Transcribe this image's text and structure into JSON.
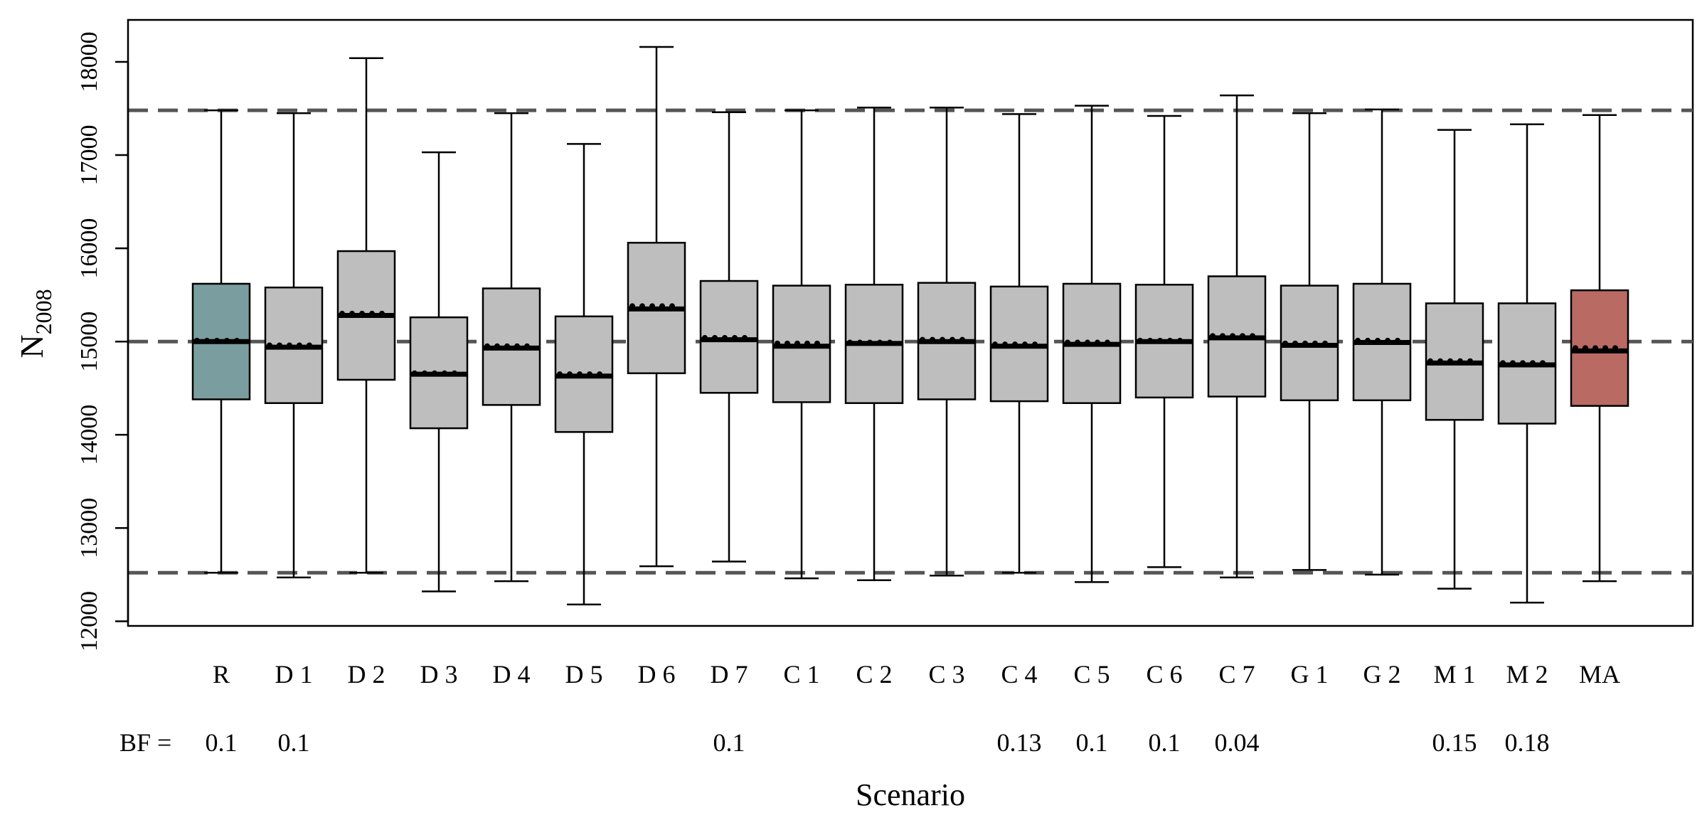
{
  "chart_data": {
    "type": "boxplot",
    "title": "",
    "xlabel": "Scenario",
    "ylabel_main": "N",
    "ylabel_sub": "2008",
    "ylim": [
      11950,
      18450
    ],
    "yticks": [
      12000,
      13000,
      14000,
      15000,
      16000,
      17000,
      18000
    ],
    "grid": false,
    "reference_lines": [
      {
        "y": 17480,
        "style": "dashed"
      },
      {
        "y": 15000,
        "style": "dashed"
      },
      {
        "y": 12520,
        "style": "dashed"
      }
    ],
    "bf_label": "BF =",
    "colors": {
      "default_box": "#bebebe",
      "R": "#7a9e9f",
      "MA": "#b96a62",
      "reference_line": "#555555",
      "stroke": "#000000"
    },
    "boxes": [
      {
        "label": "R",
        "whisker_low": 12520,
        "q1": 14380,
        "median": 15000,
        "mean": 15010,
        "q3": 15620,
        "whisker_high": 17480,
        "bf": "0.1"
      },
      {
        "label": "D 1",
        "whisker_low": 12470,
        "q1": 14340,
        "median": 14940,
        "mean": 14960,
        "q3": 15580,
        "whisker_high": 17450,
        "bf": "0.1"
      },
      {
        "label": "D 2",
        "whisker_low": 12520,
        "q1": 14590,
        "median": 15280,
        "mean": 15300,
        "q3": 15970,
        "whisker_high": 18040,
        "bf": ""
      },
      {
        "label": "D 3",
        "whisker_low": 12320,
        "q1": 14070,
        "median": 14650,
        "mean": 14660,
        "q3": 15260,
        "whisker_high": 17030,
        "bf": ""
      },
      {
        "label": "D 4",
        "whisker_low": 12430,
        "q1": 14320,
        "median": 14930,
        "mean": 14950,
        "q3": 15570,
        "whisker_high": 17450,
        "bf": ""
      },
      {
        "label": "D 5",
        "whisker_low": 12180,
        "q1": 14030,
        "median": 14630,
        "mean": 14650,
        "q3": 15270,
        "whisker_high": 17120,
        "bf": ""
      },
      {
        "label": "D 6",
        "whisker_low": 12590,
        "q1": 14660,
        "median": 15350,
        "mean": 15380,
        "q3": 16060,
        "whisker_high": 18160,
        "bf": ""
      },
      {
        "label": "D 7",
        "whisker_low": 12640,
        "q1": 14450,
        "median": 15020,
        "mean": 15040,
        "q3": 15650,
        "whisker_high": 17460,
        "bf": "0.1"
      },
      {
        "label": "C 1",
        "whisker_low": 12460,
        "q1": 14350,
        "median": 14950,
        "mean": 14980,
        "q3": 15600,
        "whisker_high": 17480,
        "bf": ""
      },
      {
        "label": "C 2",
        "whisker_low": 12440,
        "q1": 14340,
        "median": 14980,
        "mean": 14990,
        "q3": 15610,
        "whisker_high": 17510,
        "bf": ""
      },
      {
        "label": "C 3",
        "whisker_low": 12490,
        "q1": 14380,
        "median": 15000,
        "mean": 15020,
        "q3": 15630,
        "whisker_high": 17510,
        "bf": ""
      },
      {
        "label": "C 4",
        "whisker_low": 12520,
        "q1": 14360,
        "median": 14950,
        "mean": 14970,
        "q3": 15590,
        "whisker_high": 17440,
        "bf": "0.13"
      },
      {
        "label": "C 5",
        "whisker_low": 12420,
        "q1": 14340,
        "median": 14970,
        "mean": 14990,
        "q3": 15620,
        "whisker_high": 17530,
        "bf": "0.1"
      },
      {
        "label": "C 6",
        "whisker_low": 12580,
        "q1": 14400,
        "median": 15000,
        "mean": 15010,
        "q3": 15610,
        "whisker_high": 17420,
        "bf": "0.1"
      },
      {
        "label": "C 7",
        "whisker_low": 12470,
        "q1": 14410,
        "median": 15040,
        "mean": 15060,
        "q3": 15700,
        "whisker_high": 17640,
        "bf": "0.04"
      },
      {
        "label": "G 1",
        "whisker_low": 12550,
        "q1": 14370,
        "median": 14960,
        "mean": 14980,
        "q3": 15600,
        "whisker_high": 17450,
        "bf": ""
      },
      {
        "label": "G 2",
        "whisker_low": 12500,
        "q1": 14370,
        "median": 14990,
        "mean": 15010,
        "q3": 15620,
        "whisker_high": 17490,
        "bf": ""
      },
      {
        "label": "M 1",
        "whisker_low": 12350,
        "q1": 14160,
        "median": 14770,
        "mean": 14790,
        "q3": 15410,
        "whisker_high": 17270,
        "bf": "0.15"
      },
      {
        "label": "M 2",
        "whisker_low": 12200,
        "q1": 14120,
        "median": 14750,
        "mean": 14770,
        "q3": 15410,
        "whisker_high": 17330,
        "bf": "0.18"
      },
      {
        "label": "MA",
        "whisker_low": 12430,
        "q1": 14310,
        "median": 14900,
        "mean": 14930,
        "q3": 15550,
        "whisker_high": 17430,
        "bf": ""
      }
    ]
  }
}
